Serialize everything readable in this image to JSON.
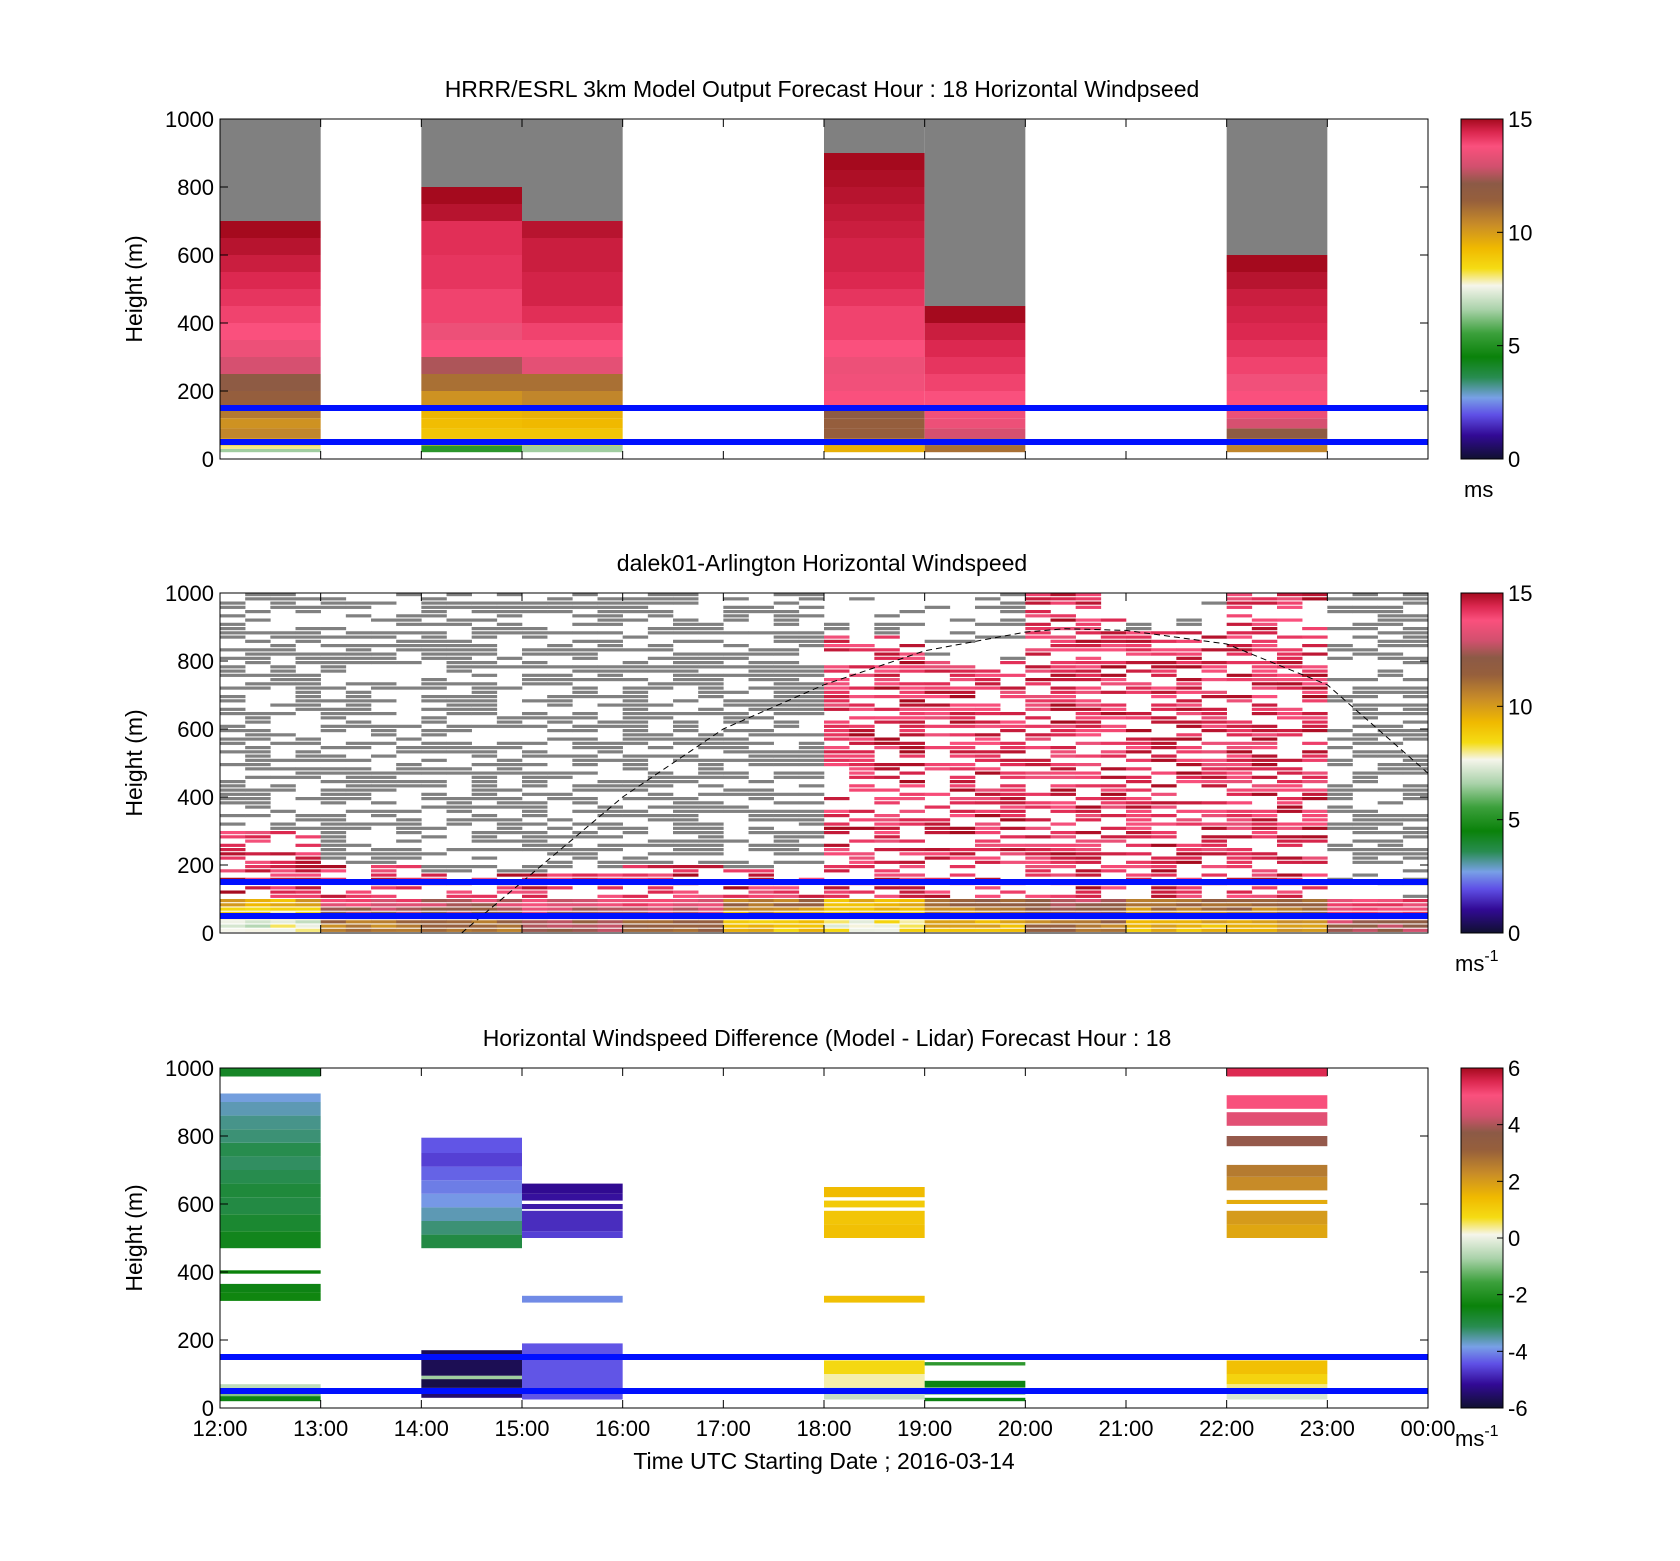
{
  "chart_data": [
    {
      "type": "heatmap",
      "id": "model",
      "title": "HRRR/ESRL 3km Model Output   Forecast Hour : 18 Horizontal Windpseed",
      "ylabel": "Height (m)",
      "ylim": [
        0,
        1000
      ],
      "yticks": [
        "0",
        "200",
        "400",
        "600",
        "800",
        "1000"
      ],
      "colorbar": {
        "ticks": [
          "0",
          "5",
          "10",
          "15"
        ],
        "range": [
          0,
          15
        ],
        "unit": "ms",
        "unit_sup": ""
      },
      "reference_lines_m": [
        50,
        150
      ],
      "columns": [
        {
          "t_start": 0,
          "t_end": 1,
          "top": 700,
          "segments": [
            [
              20,
              30,
              6.5
            ],
            [
              30,
              40,
              8.0
            ],
            [
              40,
              60,
              9.5
            ],
            [
              60,
              90,
              10.5
            ],
            [
              90,
              120,
              10.2
            ],
            [
              120,
              150,
              10.8
            ],
            [
              150,
              200,
              11.5
            ],
            [
              200,
              250,
              12.0
            ],
            [
              250,
              300,
              13.0
            ],
            [
              300,
              350,
              13.5
            ],
            [
              350,
              400,
              13.8
            ],
            [
              400,
              450,
              14.0
            ],
            [
              450,
              500,
              14.2
            ],
            [
              500,
              550,
              14.4
            ],
            [
              550,
              600,
              14.6
            ],
            [
              600,
              650,
              14.8
            ],
            [
              650,
              700,
              15.0
            ]
          ]
        },
        {
          "t_start": 2,
          "t_end": 3,
          "top": 800,
          "segments": [
            [
              20,
              40,
              5.2
            ],
            [
              40,
              60,
              9.0
            ],
            [
              60,
              90,
              9.0
            ],
            [
              90,
              120,
              9.2
            ],
            [
              120,
              150,
              9.4
            ],
            [
              150,
              200,
              10.2
            ],
            [
              200,
              250,
              11.0
            ],
            [
              250,
              300,
              12.5
            ],
            [
              300,
              350,
              13.8
            ],
            [
              350,
              400,
              13.5
            ],
            [
              400,
              450,
              14.0
            ],
            [
              450,
              500,
              14.0
            ],
            [
              500,
              550,
              14.2
            ],
            [
              550,
              600,
              14.2
            ],
            [
              600,
              650,
              14.3
            ],
            [
              650,
              700,
              14.3
            ],
            [
              700,
              750,
              14.8
            ],
            [
              750,
              800,
              15.0
            ]
          ]
        },
        {
          "t_start": 3,
          "t_end": 4,
          "top": 700,
          "segments": [
            [
              20,
              40,
              6.5
            ],
            [
              40,
              60,
              9.0
            ],
            [
              60,
              90,
              9.0
            ],
            [
              90,
              120,
              9.3
            ],
            [
              120,
              150,
              9.5
            ],
            [
              150,
              200,
              10.5
            ],
            [
              200,
              250,
              11.0
            ],
            [
              250,
              300,
              13.3
            ],
            [
              300,
              350,
              13.8
            ],
            [
              350,
              400,
              14.0
            ],
            [
              400,
              450,
              14.3
            ],
            [
              450,
              500,
              14.5
            ],
            [
              500,
              550,
              14.5
            ],
            [
              550,
              600,
              14.6
            ],
            [
              600,
              650,
              14.6
            ],
            [
              650,
              700,
              14.8
            ]
          ]
        },
        {
          "t_start": 6,
          "t_end": 7,
          "top": 900,
          "segments": [
            [
              20,
              40,
              9.5
            ],
            [
              40,
              60,
              10.5
            ],
            [
              60,
              90,
              11.5
            ],
            [
              90,
              120,
              11.5
            ],
            [
              120,
              150,
              12.0
            ],
            [
              150,
              200,
              13.8
            ],
            [
              200,
              250,
              13.6
            ],
            [
              250,
              300,
              13.5
            ],
            [
              300,
              350,
              13.8
            ],
            [
              350,
              400,
              14.0
            ],
            [
              400,
              450,
              14.0
            ],
            [
              450,
              500,
              14.2
            ],
            [
              500,
              550,
              14.4
            ],
            [
              550,
              600,
              14.5
            ],
            [
              600,
              650,
              14.5
            ],
            [
              650,
              700,
              14.6
            ],
            [
              700,
              750,
              14.7
            ],
            [
              750,
              800,
              14.8
            ],
            [
              800,
              850,
              14.9
            ],
            [
              850,
              900,
              15.0
            ]
          ]
        },
        {
          "t_start": 7,
          "t_end": 8,
          "top": 450,
          "segments": [
            [
              20,
              40,
              11.0
            ],
            [
              40,
              60,
              12.0
            ],
            [
              60,
              90,
              13.0
            ],
            [
              90,
              120,
              13.5
            ],
            [
              120,
              150,
              13.6
            ],
            [
              150,
              200,
              13.8
            ],
            [
              200,
              250,
              14.0
            ],
            [
              250,
              300,
              14.2
            ],
            [
              300,
              350,
              14.4
            ],
            [
              350,
              400,
              14.6
            ],
            [
              400,
              450,
              15.0
            ]
          ]
        },
        {
          "t_start": 10,
          "t_end": 11,
          "top": 600,
          "segments": [
            [
              20,
              40,
              10.5
            ],
            [
              40,
              60,
              11.0
            ],
            [
              60,
              90,
              12.0
            ],
            [
              90,
              120,
              13.0
            ],
            [
              120,
              150,
              13.5
            ],
            [
              150,
              200,
              13.8
            ],
            [
              200,
              250,
              13.6
            ],
            [
              250,
              300,
              14.0
            ],
            [
              300,
              350,
              14.2
            ],
            [
              350,
              400,
              14.4
            ],
            [
              400,
              450,
              14.5
            ],
            [
              450,
              500,
              14.6
            ],
            [
              500,
              550,
              14.8
            ],
            [
              550,
              600,
              15.0
            ]
          ]
        }
      ]
    },
    {
      "type": "heatmap",
      "id": "lidar",
      "title": "dalek01-Arlington  Horizontal Windspeed",
      "ylabel": "Height (m)",
      "ylim": [
        0,
        1000
      ],
      "yticks": [
        "0",
        "200",
        "400",
        "600",
        "800",
        "1000"
      ],
      "colorbar": {
        "ticks": [
          "0",
          "5",
          "10",
          "15"
        ],
        "range": [
          0,
          15
        ],
        "unit": "ms",
        "unit_sup": "-1"
      },
      "reference_lines_m": [
        50,
        150
      ],
      "hours": [
        "12:00",
        "13:00",
        "14:00",
        "15:00",
        "16:00",
        "17:00",
        "18:00",
        "19:00",
        "20:00",
        "21:00",
        "22:00",
        "23:00"
      ],
      "missing_fill": "above valid returns",
      "valid_top_m": [
        300,
        200,
        170,
        170,
        200,
        180,
        870,
        800,
        1000,
        880,
        1000,
        100
      ],
      "near_surface": [
        [
          9.5,
          13.5,
          13.0,
          13.2,
          13.5,
          11.0,
          9.5,
          11.5,
          12.5,
          11.0,
          11.5,
          14.0
        ],
        [
          8.5,
          12.5,
          12.0,
          13.0,
          12.5,
          10.0,
          8.8,
          10.5,
          12.0,
          10.5,
          11.0,
          13.5
        ],
        [
          7.5,
          11.0,
          11.0,
          12.0,
          11.5,
          9.0,
          8.0,
          9.5,
          11.0,
          9.5,
          10.0,
          12.5
        ]
      ],
      "dashed_curve": {
        "t": [
          2.4,
          3.0,
          4.0,
          5.0,
          6.0,
          7.0,
          8.0,
          8.4,
          9.0,
          10.0,
          11.0,
          12.0
        ],
        "h": [
          0,
          150,
          400,
          600,
          730,
          830,
          885,
          895,
          890,
          850,
          730,
          470
        ]
      }
    },
    {
      "type": "heatmap",
      "id": "diff",
      "title": "Horizontal Windspeed Difference (Model - Lidar) Forecast Hour : 18",
      "xlabel": "Time UTC  Starting Date ; 2016-03-14",
      "ylabel": "Height (m)",
      "ylim": [
        0,
        1000
      ],
      "yticks": [
        "0",
        "200",
        "400",
        "600",
        "800",
        "1000"
      ],
      "xticks": [
        "12:00",
        "13:00",
        "14:00",
        "15:00",
        "16:00",
        "17:00",
        "18:00",
        "19:00",
        "20:00",
        "21:00",
        "22:00",
        "23:00",
        "00:00"
      ],
      "colorbar": {
        "ticks": [
          "-6",
          "-4",
          "-2",
          "0",
          "2",
          "4",
          "6"
        ],
        "range": [
          -6,
          6
        ],
        "unit": "ms",
        "unit_sup": "-1"
      },
      "reference_lines_m": [
        50,
        150
      ],
      "columns": [
        {
          "t_start": 0,
          "t_end": 1,
          "segments": [
            [
              20,
              35,
              -2.5
            ],
            [
              35,
              50,
              -1.0
            ],
            [
              55,
              70,
              -0.5
            ],
            [
              315,
              340,
              -2.3
            ],
            [
              340,
              365,
              -2.5
            ],
            [
              395,
              405,
              -2.4
            ],
            [
              470,
              520,
              -2.6
            ],
            [
              520,
              570,
              -2.8
            ],
            [
              570,
              620,
              -3.0
            ],
            [
              620,
              660,
              -2.9
            ],
            [
              660,
              700,
              -3.1
            ],
            [
              700,
              740,
              -3.2
            ],
            [
              740,
              780,
              -3.1
            ],
            [
              780,
              820,
              -3.3
            ],
            [
              820,
              860,
              -3.4
            ],
            [
              860,
              900,
              -3.6
            ],
            [
              900,
              925,
              -3.8
            ],
            [
              975,
              1000,
              -2.7
            ]
          ]
        },
        {
          "t_start": 2,
          "t_end": 3,
          "segments": [
            [
              30,
              60,
              -5.5
            ],
            [
              60,
              85,
              -5.8
            ],
            [
              85,
              95,
              -0.8
            ],
            [
              95,
              170,
              -5.7
            ],
            [
              470,
              510,
              -3.0
            ],
            [
              510,
              550,
              -3.3
            ],
            [
              550,
              590,
              -3.6
            ],
            [
              590,
              630,
              -3.9
            ],
            [
              630,
              670,
              -4.1
            ],
            [
              670,
              710,
              -4.3
            ],
            [
              710,
              750,
              -4.6
            ],
            [
              750,
              795,
              -4.4
            ]
          ]
        },
        {
          "t_start": 3,
          "t_end": 4,
          "segments": [
            [
              25,
              190,
              -4.4
            ],
            [
              310,
              330,
              -4.0
            ],
            [
              500,
              520,
              -4.6
            ],
            [
              520,
              580,
              -4.8
            ],
            [
              585,
              600,
              -5.0
            ],
            [
              610,
              630,
              -5.1
            ],
            [
              630,
              660,
              -5.2
            ]
          ]
        },
        {
          "t_start": 6,
          "t_end": 7,
          "segments": [
            [
              25,
              60,
              -0.4
            ],
            [
              60,
              100,
              0.3
            ],
            [
              100,
              140,
              0.8
            ],
            [
              310,
              330,
              1.3
            ],
            [
              500,
              540,
              1.3
            ],
            [
              540,
              580,
              1.2
            ],
            [
              590,
              610,
              1.1
            ],
            [
              620,
              650,
              1.4
            ]
          ]
        },
        {
          "t_start": 7,
          "t_end": 8,
          "segments": [
            [
              20,
              30,
              -2.5
            ],
            [
              40,
              50,
              -3.0
            ],
            [
              60,
              80,
              -2.5
            ],
            [
              125,
              135,
              -1.8
            ]
          ]
        },
        {
          "t_start": 10,
          "t_end": 11,
          "segments": [
            [
              25,
              45,
              -0.2
            ],
            [
              45,
              70,
              0.4
            ],
            [
              70,
              100,
              0.9
            ],
            [
              100,
              140,
              1.3
            ],
            [
              500,
              540,
              1.8
            ],
            [
              540,
              580,
              2.0
            ],
            [
              600,
              612,
              1.7
            ],
            [
              640,
              680,
              2.3
            ],
            [
              680,
              715,
              2.6
            ],
            [
              770,
              800,
              3.8
            ],
            [
              830,
              870,
              4.6
            ],
            [
              880,
              920,
              5.0
            ],
            [
              975,
              1000,
              5.5
            ]
          ]
        }
      ]
    }
  ]
}
